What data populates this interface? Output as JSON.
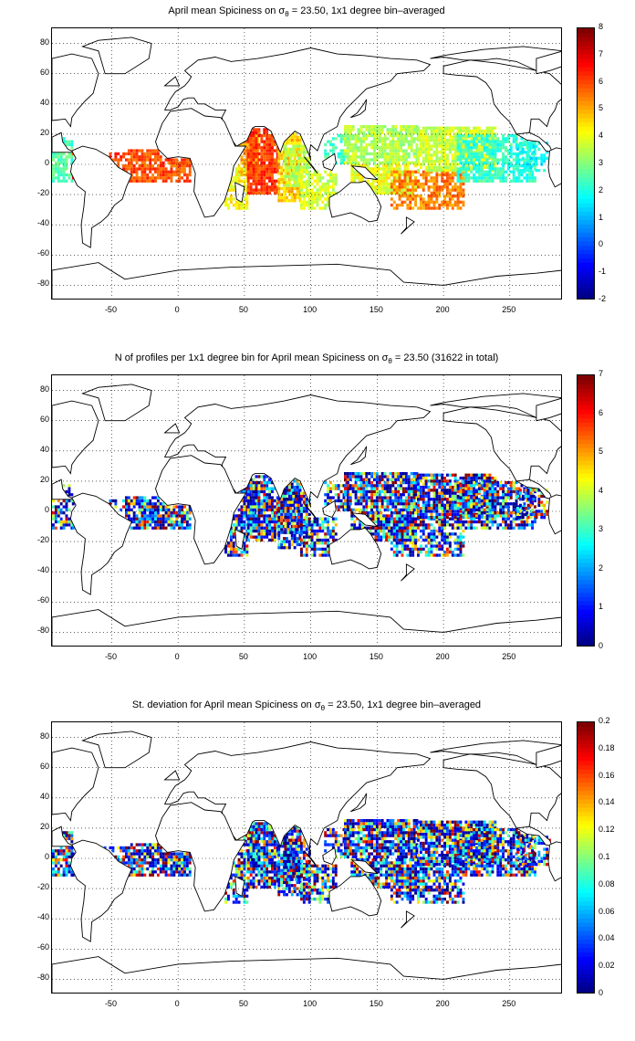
{
  "panels": [
    {
      "title_pre": "April mean Spiciness on σ",
      "title_sub": "θ",
      "title_post": " = 23.50, 1x1 degree bin–averaged",
      "colorbar": {
        "min": -2,
        "max": 8,
        "ticks": [
          "8",
          "7",
          "6",
          "5",
          "4",
          "3",
          "2",
          "1",
          "0",
          "-1",
          "-2"
        ]
      }
    },
    {
      "title_pre": "N of profiles per 1x1 degree bin for April mean Spiciness on σ",
      "title_sub": "θ",
      "title_post": " = 23.50 (31622 in total)",
      "colorbar": {
        "min": 0,
        "max": 7,
        "ticks": [
          "7",
          "6",
          "5",
          "4",
          "3",
          "2",
          "1",
          "0"
        ]
      }
    },
    {
      "title_pre": "St. deviation for April mean Spiciness on σ",
      "title_sub": "θ",
      "title_post": " = 23.50, 1x1 degree bin–averaged",
      "colorbar": {
        "min": 0,
        "max": 0.2,
        "ticks": [
          "0.2",
          "0.18",
          "0.16",
          "0.14",
          "0.12",
          "0.1",
          "0.08",
          "0.06",
          "0.04",
          "0.02",
          "0"
        ]
      }
    }
  ],
  "axes": {
    "x_range": [
      -95,
      290
    ],
    "y_range": [
      -90,
      90
    ],
    "x_ticks": [
      "-50",
      "0",
      "50",
      "100",
      "150",
      "200",
      "250"
    ],
    "y_ticks": [
      "80",
      "60",
      "40",
      "20",
      "0",
      "-20",
      "-40",
      "-60",
      "-80"
    ]
  },
  "colormap": "jet"
}
